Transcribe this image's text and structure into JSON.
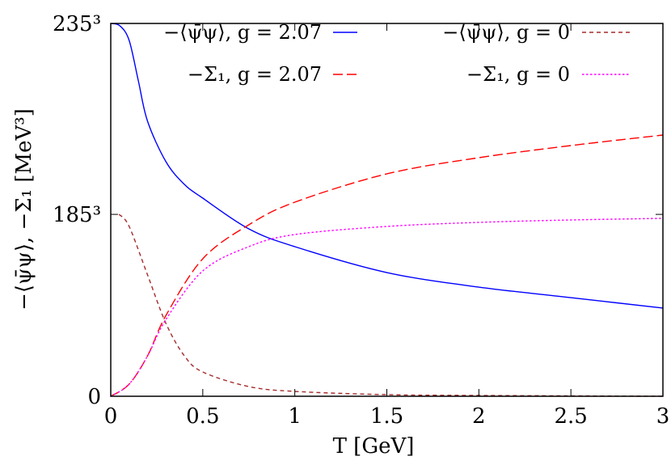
{
  "chart_data": {
    "type": "line",
    "xlabel": "T [GeV]",
    "ylabel": "−⟨ψ̄ψ⟩, −Σ₁ [MeV³]",
    "xlim": [
      0,
      3
    ],
    "ylim": [
      0,
      12977875
    ],
    "x_ticks": [
      {
        "value": 0,
        "label": "0"
      },
      {
        "value": 0.5,
        "label": "0.5"
      },
      {
        "value": 1,
        "label": "1"
      },
      {
        "value": 1.5,
        "label": "1.5"
      },
      {
        "value": 2,
        "label": "2"
      },
      {
        "value": 2.5,
        "label": "2.5"
      },
      {
        "value": 3,
        "label": "3"
      }
    ],
    "y_ticks": [
      {
        "value": 0,
        "label": "0"
      },
      {
        "value": 6331625,
        "label": "185³"
      },
      {
        "value": 12977875,
        "label": "235³"
      }
    ],
    "grid": false,
    "legend_placement": "top",
    "series": [
      {
        "name": "−⟨ψ̄ψ⟩, g = 2.07",
        "color": "#0000ff",
        "style": "solid",
        "x": [
          0,
          0.05,
          0.1,
          0.15,
          0.2,
          0.3,
          0.4,
          0.5,
          0.75,
          1,
          1.5,
          2,
          2.5,
          3
        ],
        "y": [
          12978000,
          12893000,
          12387000,
          10979000,
          9572000,
          8164000,
          7376000,
          6897000,
          5827000,
          5208000,
          4307000,
          3800000,
          3434000,
          3069000
        ]
      },
      {
        "name": "−⟨ψ̄ψ⟩, g = 0",
        "color": "#a52a2a",
        "style": "dashed-short",
        "x": [
          0.045,
          0.1,
          0.2,
          0.3,
          0.4,
          0.5,
          0.75,
          1,
          1.5,
          2,
          3
        ],
        "y": [
          6334000,
          5912000,
          4223000,
          2534000,
          1408000,
          845000,
          338000,
          169000,
          56000,
          28000,
          0
        ]
      },
      {
        "name": "−Σ₁, g = 2.07",
        "color": "#ff0000",
        "style": "dashed-long",
        "x": [
          0,
          0.1,
          0.2,
          0.3,
          0.5,
          0.75,
          1,
          1.5,
          2,
          2.5,
          3
        ],
        "y": [
          0,
          422000,
          1408000,
          2815000,
          4786000,
          5968000,
          6756000,
          7742000,
          8305000,
          8727000,
          9093000
        ]
      },
      {
        "name": "−Σ₁, g = 0",
        "color": "#ff00ff",
        "style": "dotted",
        "x": [
          0,
          0.1,
          0.2,
          0.3,
          0.5,
          0.75,
          1,
          1.5,
          2,
          2.5,
          3
        ],
        "y": [
          0,
          422000,
          1408000,
          2674000,
          4363000,
          5208000,
          5630000,
          5912000,
          6053000,
          6137000,
          6193000
        ]
      }
    ]
  }
}
